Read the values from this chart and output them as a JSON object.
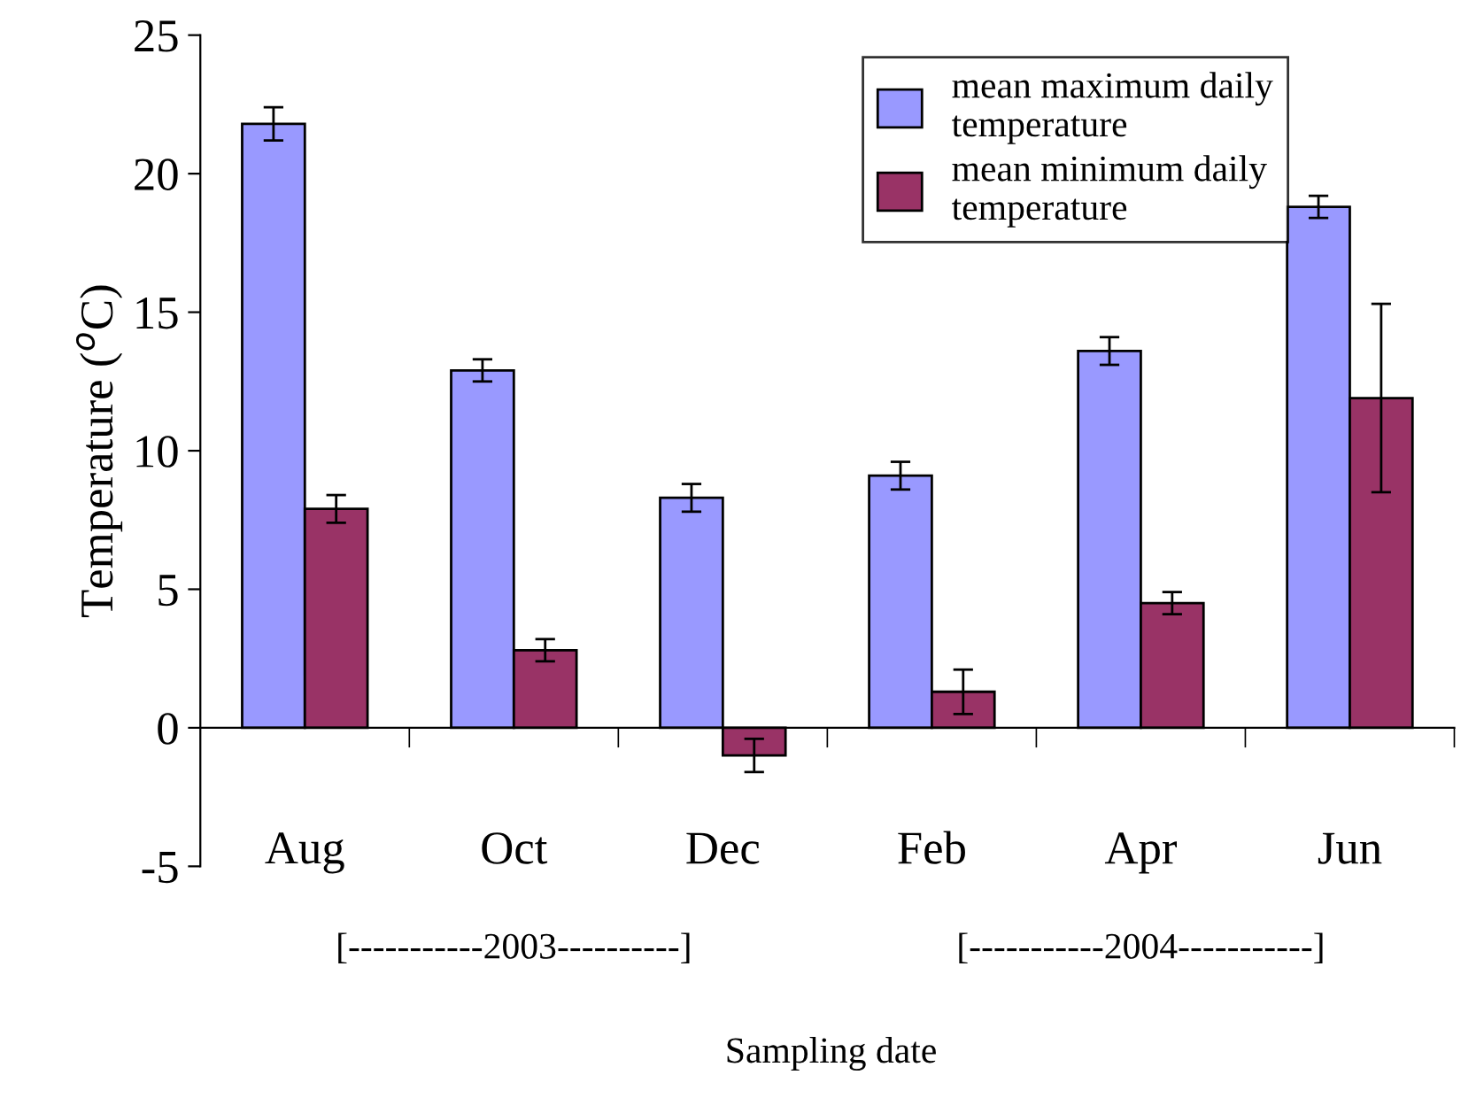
{
  "chart_data": {
    "type": "bar",
    "categories": [
      "Aug",
      "Oct",
      "Dec",
      "Feb",
      "Apr",
      "Jun"
    ],
    "series": [
      {
        "name": "mean maximum daily temperature",
        "color": "#9999ff",
        "values": [
          21.8,
          12.9,
          8.3,
          9.1,
          13.6,
          18.8
        ],
        "errors": [
          0.6,
          0.4,
          0.5,
          0.5,
          0.5,
          0.4
        ]
      },
      {
        "name": "mean minimum daily temperature",
        "color": "#993366",
        "values": [
          7.9,
          2.8,
          -1.0,
          1.3,
          4.5,
          11.9
        ],
        "errors": [
          0.5,
          0.4,
          0.6,
          0.8,
          0.4,
          3.4
        ]
      }
    ],
    "ylabel": "Temperature ($^{o}$C)",
    "xlabel": "Sampling date",
    "annotations": [
      "[-----------2003----------]",
      "[-----------2004-----------]"
    ],
    "ylim": [
      -5,
      25
    ],
    "yticks": [
      -5,
      0,
      5,
      10,
      15,
      20,
      25
    ],
    "legend": "top right",
    "grid": false
  }
}
